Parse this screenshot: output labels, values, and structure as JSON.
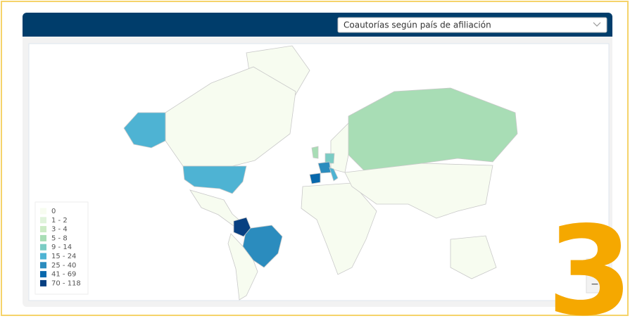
{
  "dropdown": {
    "selected": "Coautorías según país de afiliación"
  },
  "legend": {
    "items": [
      {
        "label": "0",
        "color": "#f7fcf0"
      },
      {
        "label": "1 - 2",
        "color": "#e0f3db"
      },
      {
        "label": "3 - 4",
        "color": "#ccebc5"
      },
      {
        "label": "5 - 8",
        "color": "#a8ddb5"
      },
      {
        "label": "9 - 14",
        "color": "#7bccc4"
      },
      {
        "label": "15 - 24",
        "color": "#4eb3d3"
      },
      {
        "label": "25 - 40",
        "color": "#2b8cbe"
      },
      {
        "label": "41 - 69",
        "color": "#0868ac"
      },
      {
        "label": "70 - 118",
        "color": "#084081"
      }
    ]
  },
  "zoom": {
    "in": "+",
    "out": "−"
  },
  "badge": "3"
}
